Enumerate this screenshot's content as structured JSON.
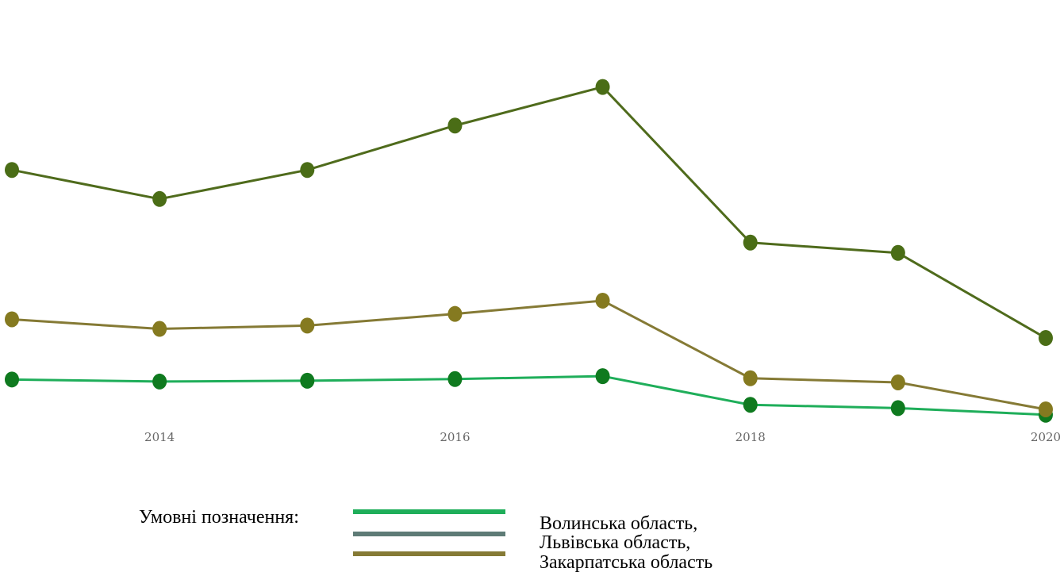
{
  "chart_data": {
    "type": "line",
    "x": [
      2013,
      2014,
      2015,
      2016,
      2017,
      2018,
      2019,
      2020
    ],
    "x_ticks": [
      "2014",
      "2016",
      "2018",
      "2020"
    ],
    "xlim": [
      2013,
      2020
    ],
    "ylim": [
      0,
      100
    ],
    "grid": false,
    "series": [
      {
        "name": "Волинська область,",
        "color": "#1fae5a",
        "values": [
          9.5,
          9.0,
          9.2,
          9.6,
          10.3,
          3.4,
          2.6,
          1.0
        ]
      },
      {
        "name": "Львівська область,",
        "color": "#4f6b1c",
        "values": [
          60.0,
          53.0,
          60.0,
          70.7,
          80.0,
          42.5,
          40.0,
          19.5
        ]
      },
      {
        "name": "Закарпатська область",
        "color": "#857a35",
        "values": [
          24.0,
          21.7,
          22.5,
          25.3,
          28.5,
          9.8,
          8.8,
          2.3
        ]
      }
    ]
  },
  "legend": {
    "title": "Умовні позначення:",
    "swatch_colors": [
      "#1fae5a",
      "#5e7b76",
      "#857a35"
    ],
    "labels": [
      "Волинська область,",
      "Львівська область,",
      "Закарпатська область"
    ]
  }
}
